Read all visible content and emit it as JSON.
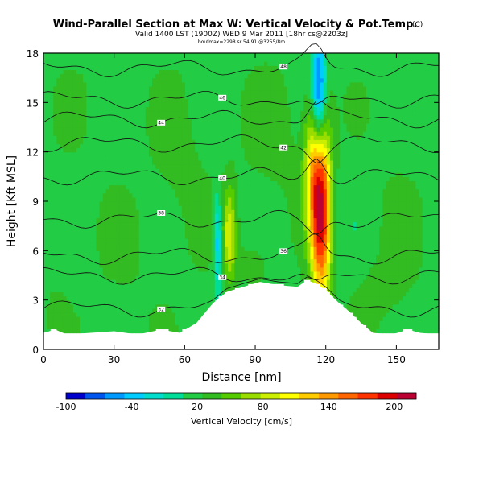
{
  "chart_data": {
    "type": "heatmap",
    "title": "Wind-Parallel Section at Max W: Vertical Velocity & Pot.Temp.",
    "title_mark": "(C)",
    "valid_line": "Valid 1400 LST (1900Z) WED 9 Mar 2011 [18hr cs@2203z]",
    "info_line": "boufmax=2298 sr 54.91 @3255/8m",
    "xlabel": "Distance [nm]",
    "ylabel": "Height [Kft MSL]",
    "xlim": [
      0,
      168
    ],
    "ylim": [
      0,
      18
    ],
    "x_ticks": [
      "0",
      "30",
      "60",
      "90",
      "120",
      "150"
    ],
    "x_tick_values": [
      0,
      30,
      60,
      90,
      120,
      150
    ],
    "y_ticks": [
      "0",
      "3",
      "6",
      "9",
      "12",
      "15",
      "18"
    ],
    "y_tick_values": [
      0,
      3,
      6,
      9,
      12,
      15,
      18
    ],
    "terrain": {
      "x": [
        0,
        5,
        10,
        20,
        30,
        40,
        50,
        58,
        65,
        72,
        78,
        85,
        92,
        100,
        108,
        112,
        116,
        120,
        125,
        130,
        135,
        140,
        148,
        155,
        160,
        168
      ],
      "y": [
        1.0,
        1.2,
        0.9,
        1.0,
        1.1,
        0.9,
        1.2,
        1.0,
        1.6,
        2.8,
        3.5,
        3.8,
        4.1,
        3.9,
        3.8,
        4.2,
        4.0,
        3.6,
        2.9,
        2.3,
        1.6,
        1.0,
        0.9,
        1.2,
        1.0,
        0.9
      ]
    },
    "velocity_features": [
      {
        "x": 118,
        "y": 8.5,
        "sx": 3.0,
        "sy": 4.0,
        "w": 220
      },
      {
        "x": 114,
        "y": 11.0,
        "sx": 2.5,
        "sy": 3.0,
        "w": 90
      },
      {
        "x": 117,
        "y": 15.5,
        "sx": 2.2,
        "sy": 2.5,
        "w": -110
      },
      {
        "x": 79,
        "y": 7.0,
        "sx": 2.0,
        "sy": 2.0,
        "w": 95
      },
      {
        "x": 74,
        "y": 6.5,
        "sx": 1.3,
        "sy": 2.0,
        "w": -55
      },
      {
        "x": 60,
        "y": 11.0,
        "sx": 9.0,
        "sy": 4.0,
        "w": 30
      },
      {
        "x": 100,
        "y": 13.0,
        "sx": 10.0,
        "sy": 3.0,
        "w": 32
      },
      {
        "x": 90,
        "y": 5.5,
        "sx": 6.0,
        "sy": 1.4,
        "w": 35
      },
      {
        "x": 38,
        "y": 6.0,
        "sx": 12.0,
        "sy": 3.0,
        "w": 25
      },
      {
        "x": 130,
        "y": 9.0,
        "sx": 10.0,
        "sy": 4.0,
        "w": 15
      },
      {
        "x": 150,
        "y": 7.0,
        "sx": 8.0,
        "sy": 4.0,
        "w": 28
      },
      {
        "x": 20,
        "y": 15.0,
        "sx": 10.0,
        "sy": 3.0,
        "w": 22
      },
      {
        "x": 140,
        "y": 3.5,
        "sx": 8.0,
        "sy": 1.5,
        "w": 30
      },
      {
        "x": 5,
        "y": 3.0,
        "sx": 5.0,
        "sy": 2.0,
        "w": 25
      }
    ],
    "theta_levels": [
      {
        "y": 2.5,
        "label": "32"
      },
      {
        "y": 4.5,
        "label": "34"
      },
      {
        "y": 5.7,
        "label": "36"
      },
      {
        "y": 7.9,
        "label": "38"
      },
      {
        "y": 10.5,
        "label": "40"
      },
      {
        "y": 12.5,
        "label": "42"
      },
      {
        "y": 14.0,
        "label": "44"
      },
      {
        "y": 15.2,
        "label": "46"
      },
      {
        "y": 17.1,
        "label": "48"
      }
    ],
    "colorbar": {
      "label": "Vertical Velocity [cm/s]",
      "tick_labels": [
        "-100",
        "-40",
        "20",
        "80",
        "140",
        "200"
      ],
      "tick_values": [
        -100,
        -40,
        20,
        80,
        140,
        200
      ],
      "vmin": -100,
      "vmax": 220,
      "colors": [
        "#0000cc",
        "#0055ee",
        "#0099ff",
        "#00ccff",
        "#00ddcc",
        "#00dd99",
        "#22cc44",
        "#33bb22",
        "#55cc00",
        "#99dd00",
        "#ccee00",
        "#ffff00",
        "#ffcc00",
        "#ff9900",
        "#ff6600",
        "#ff3300",
        "#dd0000",
        "#bb0033"
      ]
    }
  }
}
